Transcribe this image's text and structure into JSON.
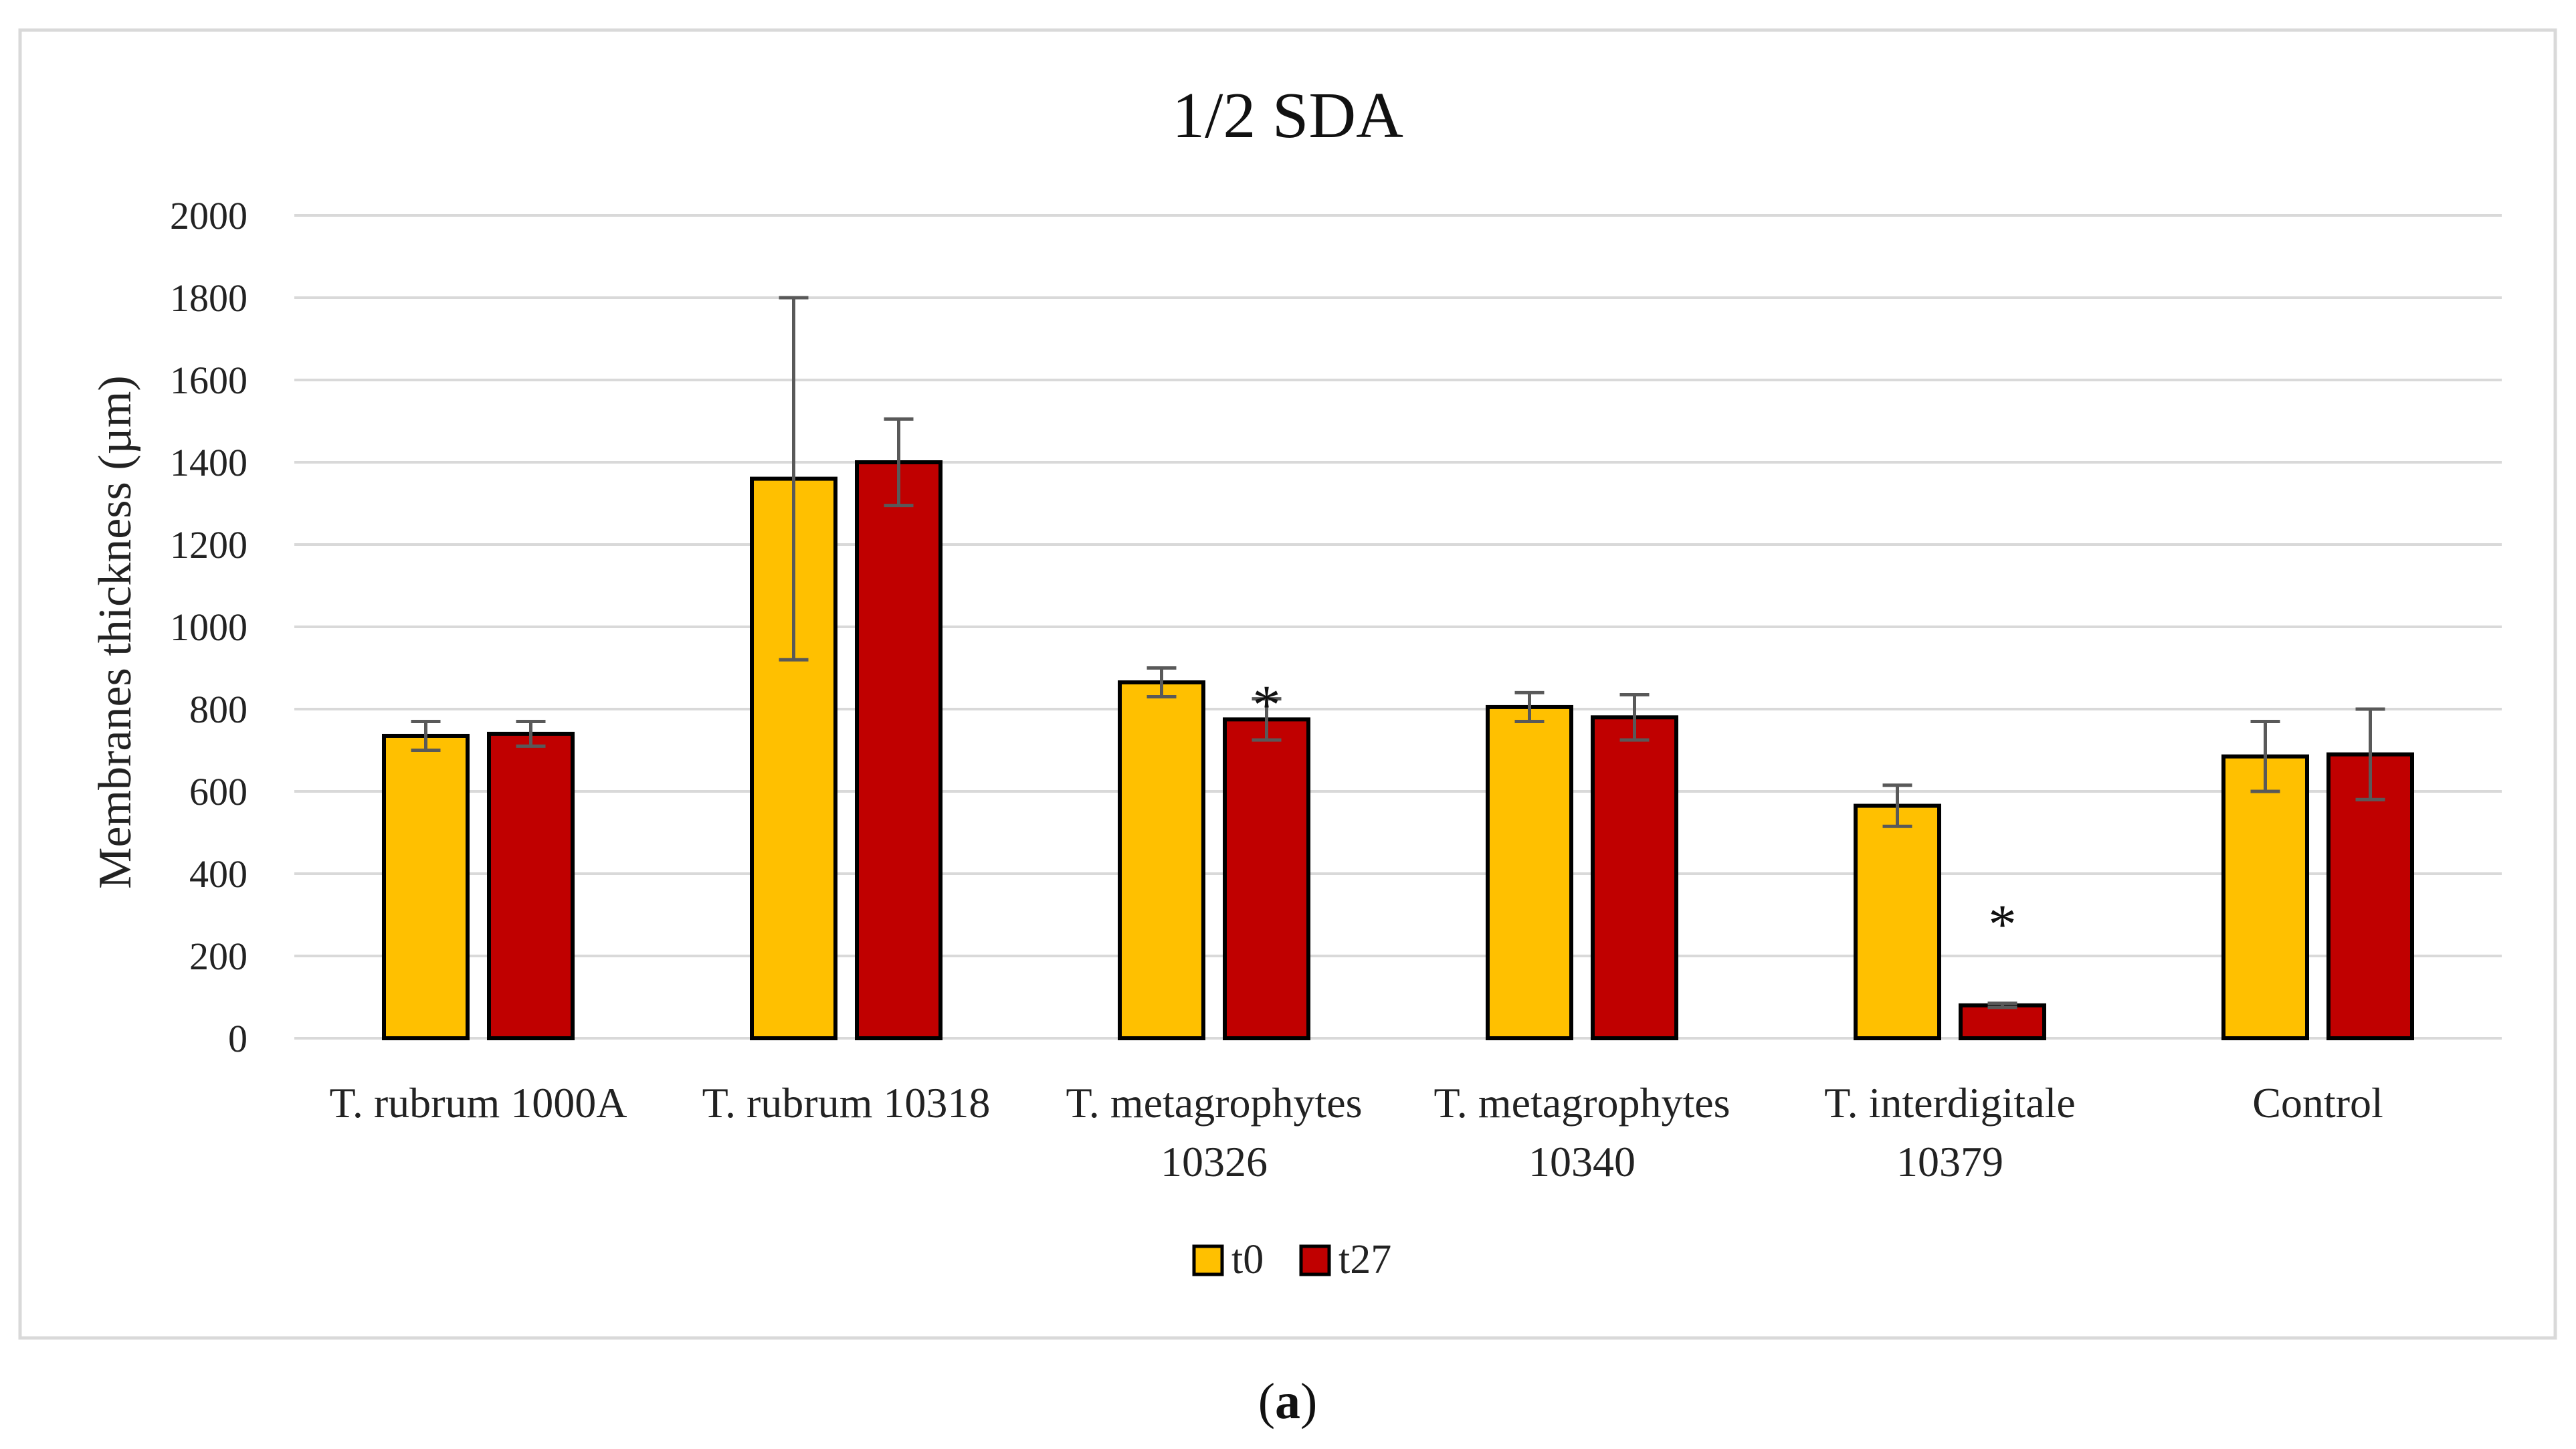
{
  "chart_data": {
    "type": "bar",
    "title": "1/2 SDA",
    "xlabel": "",
    "ylabel": "Membranes thickness (µm)",
    "ylim": [
      0,
      2000
    ],
    "yticks": [
      0,
      200,
      400,
      600,
      800,
      1000,
      1200,
      1400,
      1600,
      1800,
      2000
    ],
    "grid": true,
    "legend_position": "bottom",
    "categories": [
      [
        "T. rubrum 1000A"
      ],
      [
        "T. rubrum 10318"
      ],
      [
        "T. metagrophytes",
        "10326"
      ],
      [
        "T. metagrophytes",
        "10340"
      ],
      [
        "T. interdigitale",
        "10379"
      ],
      [
        "Control"
      ]
    ],
    "series": [
      {
        "name": "t0",
        "color": "#FFC000",
        "values": [
          735,
          1360,
          865,
          805,
          565,
          685
        ],
        "errors": [
          35,
          440,
          35,
          35,
          50,
          85
        ]
      },
      {
        "name": "t27",
        "color": "#C00000",
        "values": [
          740,
          1400,
          775,
          780,
          80,
          690
        ],
        "errors": [
          30,
          105,
          50,
          55,
          5,
          110
        ]
      }
    ],
    "annotations": [
      {
        "category_index": 2,
        "series": "t27",
        "text": "*"
      },
      {
        "category_index": 4,
        "series": "t27",
        "text": "*"
      }
    ]
  },
  "caption": {
    "open": "(",
    "letter": "a",
    "close": ")"
  }
}
